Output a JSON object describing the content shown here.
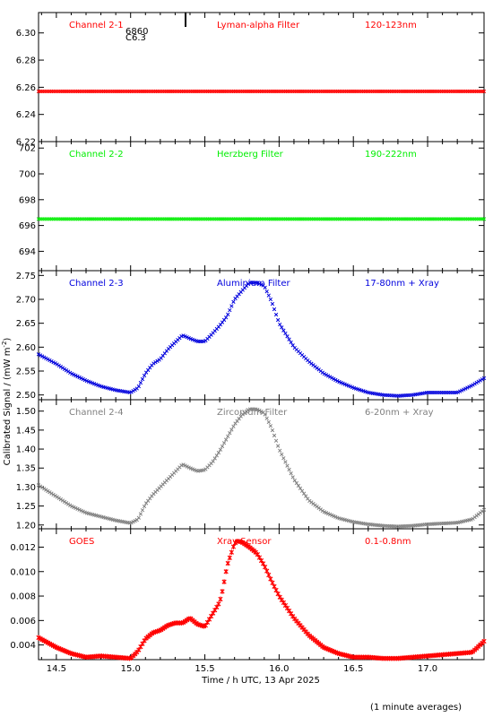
{
  "chart_data": {
    "type": "scatter",
    "x_axis": {
      "label": "Time / h UTC, 13 Apr 2025",
      "range": [
        14.38,
        17.38
      ],
      "ticks": [
        14.5,
        15.0,
        15.5,
        16.0,
        16.5,
        17.0
      ],
      "tick_labels": [
        "14.5",
        "15.0",
        "15.5",
        "16.0",
        "16.5",
        "17.0"
      ]
    },
    "y_axis_label": "Calibrated Signal / (mW m",
    "y_axis_label_sup": "-2",
    "y_axis_label_close": ")",
    "footnote": "(1 minute averages)",
    "overlay": {
      "marker_x": 15.37,
      "text_lines": [
        "6860",
        "C6.3"
      ]
    },
    "panels": [
      {
        "id": "ch2-1",
        "labels": [
          "Channel 2-1",
          "Lyman-alpha Filter",
          "120-123nm"
        ],
        "color": "#ff0000",
        "marker": "x",
        "ylim": [
          6.22,
          6.315
        ],
        "yticks": [
          6.22,
          6.24,
          6.26,
          6.28,
          6.3
        ],
        "ytick_labels": [
          "6.22",
          "6.24",
          "6.26",
          "6.28",
          "6.30"
        ],
        "series": {
          "x": [
            14.38,
            15.0,
            15.5,
            16.0,
            16.5,
            17.0,
            17.38
          ],
          "y": [
            6.257,
            6.257,
            6.257,
            6.257,
            6.257,
            6.257,
            6.257
          ]
        }
      },
      {
        "id": "ch2-2",
        "labels": [
          "Channel 2-2",
          "Herzberg Filter",
          "190-222nm"
        ],
        "color": "#00ee00",
        "marker": "x",
        "ylim": [
          692.5,
          702.5
        ],
        "yticks": [
          694,
          696,
          698,
          700,
          702
        ],
        "ytick_labels": [
          "694",
          "696",
          "698",
          "700",
          "702"
        ],
        "series": {
          "x": [
            14.38,
            15.0,
            15.5,
            16.0,
            16.5,
            17.0,
            17.38
          ],
          "y": [
            696.5,
            696.5,
            696.5,
            696.5,
            696.5,
            696.5,
            696.5
          ]
        }
      },
      {
        "id": "ch2-3",
        "labels": [
          "Channel 2-3",
          "Aluminium Filter",
          "17-80nm + Xray"
        ],
        "color": "#0000dd",
        "marker": "x",
        "ylim": [
          2.49,
          2.76
        ],
        "yticks": [
          2.5,
          2.55,
          2.6,
          2.65,
          2.7,
          2.75
        ],
        "ytick_labels": [
          "2.50",
          "2.55",
          "2.60",
          "2.65",
          "2.70",
          "2.75"
        ],
        "series": {
          "x": [
            14.38,
            14.5,
            14.6,
            14.7,
            14.8,
            14.9,
            15.0,
            15.05,
            15.1,
            15.15,
            15.2,
            15.25,
            15.3,
            15.35,
            15.4,
            15.45,
            15.5,
            15.55,
            15.6,
            15.65,
            15.7,
            15.75,
            15.8,
            15.85,
            15.9,
            15.95,
            16.0,
            16.1,
            16.2,
            16.3,
            16.4,
            16.5,
            16.6,
            16.7,
            16.8,
            16.9,
            17.0,
            17.1,
            17.2,
            17.3,
            17.38
          ],
          "y": [
            2.585,
            2.565,
            2.545,
            2.53,
            2.518,
            2.51,
            2.505,
            2.515,
            2.545,
            2.565,
            2.575,
            2.595,
            2.61,
            2.625,
            2.618,
            2.612,
            2.612,
            2.628,
            2.645,
            2.665,
            2.7,
            2.718,
            2.735,
            2.735,
            2.728,
            2.695,
            2.65,
            2.6,
            2.57,
            2.545,
            2.528,
            2.515,
            2.505,
            2.5,
            2.498,
            2.5,
            2.505,
            2.505,
            2.505,
            2.52,
            2.535
          ]
        }
      },
      {
        "id": "ch2-4",
        "labels": [
          "Channel 2-4",
          "Zirconium Filter",
          "6-20nm + Xray"
        ],
        "color": "#808080",
        "marker": "x",
        "ylim": [
          1.19,
          1.53
        ],
        "yticks": [
          1.2,
          1.25,
          1.3,
          1.35,
          1.4,
          1.45,
          1.5
        ],
        "ytick_labels": [
          "1.20",
          "1.25",
          "1.30",
          "1.35",
          "1.40",
          "1.45",
          "1.50"
        ],
        "series": {
          "x": [
            14.38,
            14.5,
            14.6,
            14.7,
            14.8,
            14.9,
            15.0,
            15.05,
            15.1,
            15.15,
            15.2,
            15.25,
            15.3,
            15.35,
            15.4,
            15.45,
            15.5,
            15.55,
            15.6,
            15.65,
            15.7,
            15.75,
            15.8,
            15.85,
            15.9,
            15.95,
            16.0,
            16.1,
            16.2,
            16.3,
            16.4,
            16.5,
            16.6,
            16.7,
            16.8,
            16.9,
            17.0,
            17.1,
            17.2,
            17.3,
            17.38
          ],
          "y": [
            1.305,
            1.275,
            1.25,
            1.232,
            1.222,
            1.212,
            1.205,
            1.215,
            1.255,
            1.28,
            1.3,
            1.32,
            1.34,
            1.36,
            1.35,
            1.342,
            1.345,
            1.365,
            1.395,
            1.43,
            1.465,
            1.49,
            1.505,
            1.505,
            1.495,
            1.455,
            1.4,
            1.32,
            1.265,
            1.235,
            1.218,
            1.208,
            1.202,
            1.198,
            1.196,
            1.198,
            1.202,
            1.204,
            1.206,
            1.215,
            1.24
          ]
        }
      },
      {
        "id": "goes",
        "labels": [
          "GOES",
          "Xray Sensor",
          "0.1-0.8nm"
        ],
        "color": "#ff0000",
        "marker": "*",
        "ylim": [
          0.0028,
          0.0135
        ],
        "yticks": [
          0.004,
          0.006,
          0.008,
          0.01,
          0.012
        ],
        "ytick_labels": [
          "0.004",
          "0.006",
          "0.008",
          "0.010",
          "0.012"
        ],
        "series": {
          "x": [
            14.38,
            14.5,
            14.6,
            14.7,
            14.8,
            14.9,
            15.0,
            15.05,
            15.1,
            15.15,
            15.2,
            15.25,
            15.3,
            15.35,
            15.4,
            15.45,
            15.5,
            15.55,
            15.6,
            15.62,
            15.65,
            15.7,
            15.72,
            15.75,
            15.8,
            15.85,
            15.9,
            15.95,
            16.0,
            16.1,
            16.2,
            16.3,
            16.4,
            16.5,
            16.6,
            16.7,
            16.8,
            16.9,
            17.0,
            17.1,
            17.2,
            17.3,
            17.38
          ],
          "y": [
            0.0046,
            0.0038,
            0.0033,
            0.003,
            0.0031,
            0.003,
            0.0029,
            0.0035,
            0.0045,
            0.005,
            0.0052,
            0.0056,
            0.0058,
            0.0058,
            0.0062,
            0.0057,
            0.0055,
            0.0065,
            0.0075,
            0.0085,
            0.0105,
            0.0123,
            0.0125,
            0.0124,
            0.012,
            0.0115,
            0.0105,
            0.0092,
            0.008,
            0.0062,
            0.0048,
            0.0038,
            0.0033,
            0.003,
            0.003,
            0.0029,
            0.0029,
            0.003,
            0.0031,
            0.0032,
            0.0033,
            0.0034,
            0.0043
          ]
        }
      }
    ]
  }
}
